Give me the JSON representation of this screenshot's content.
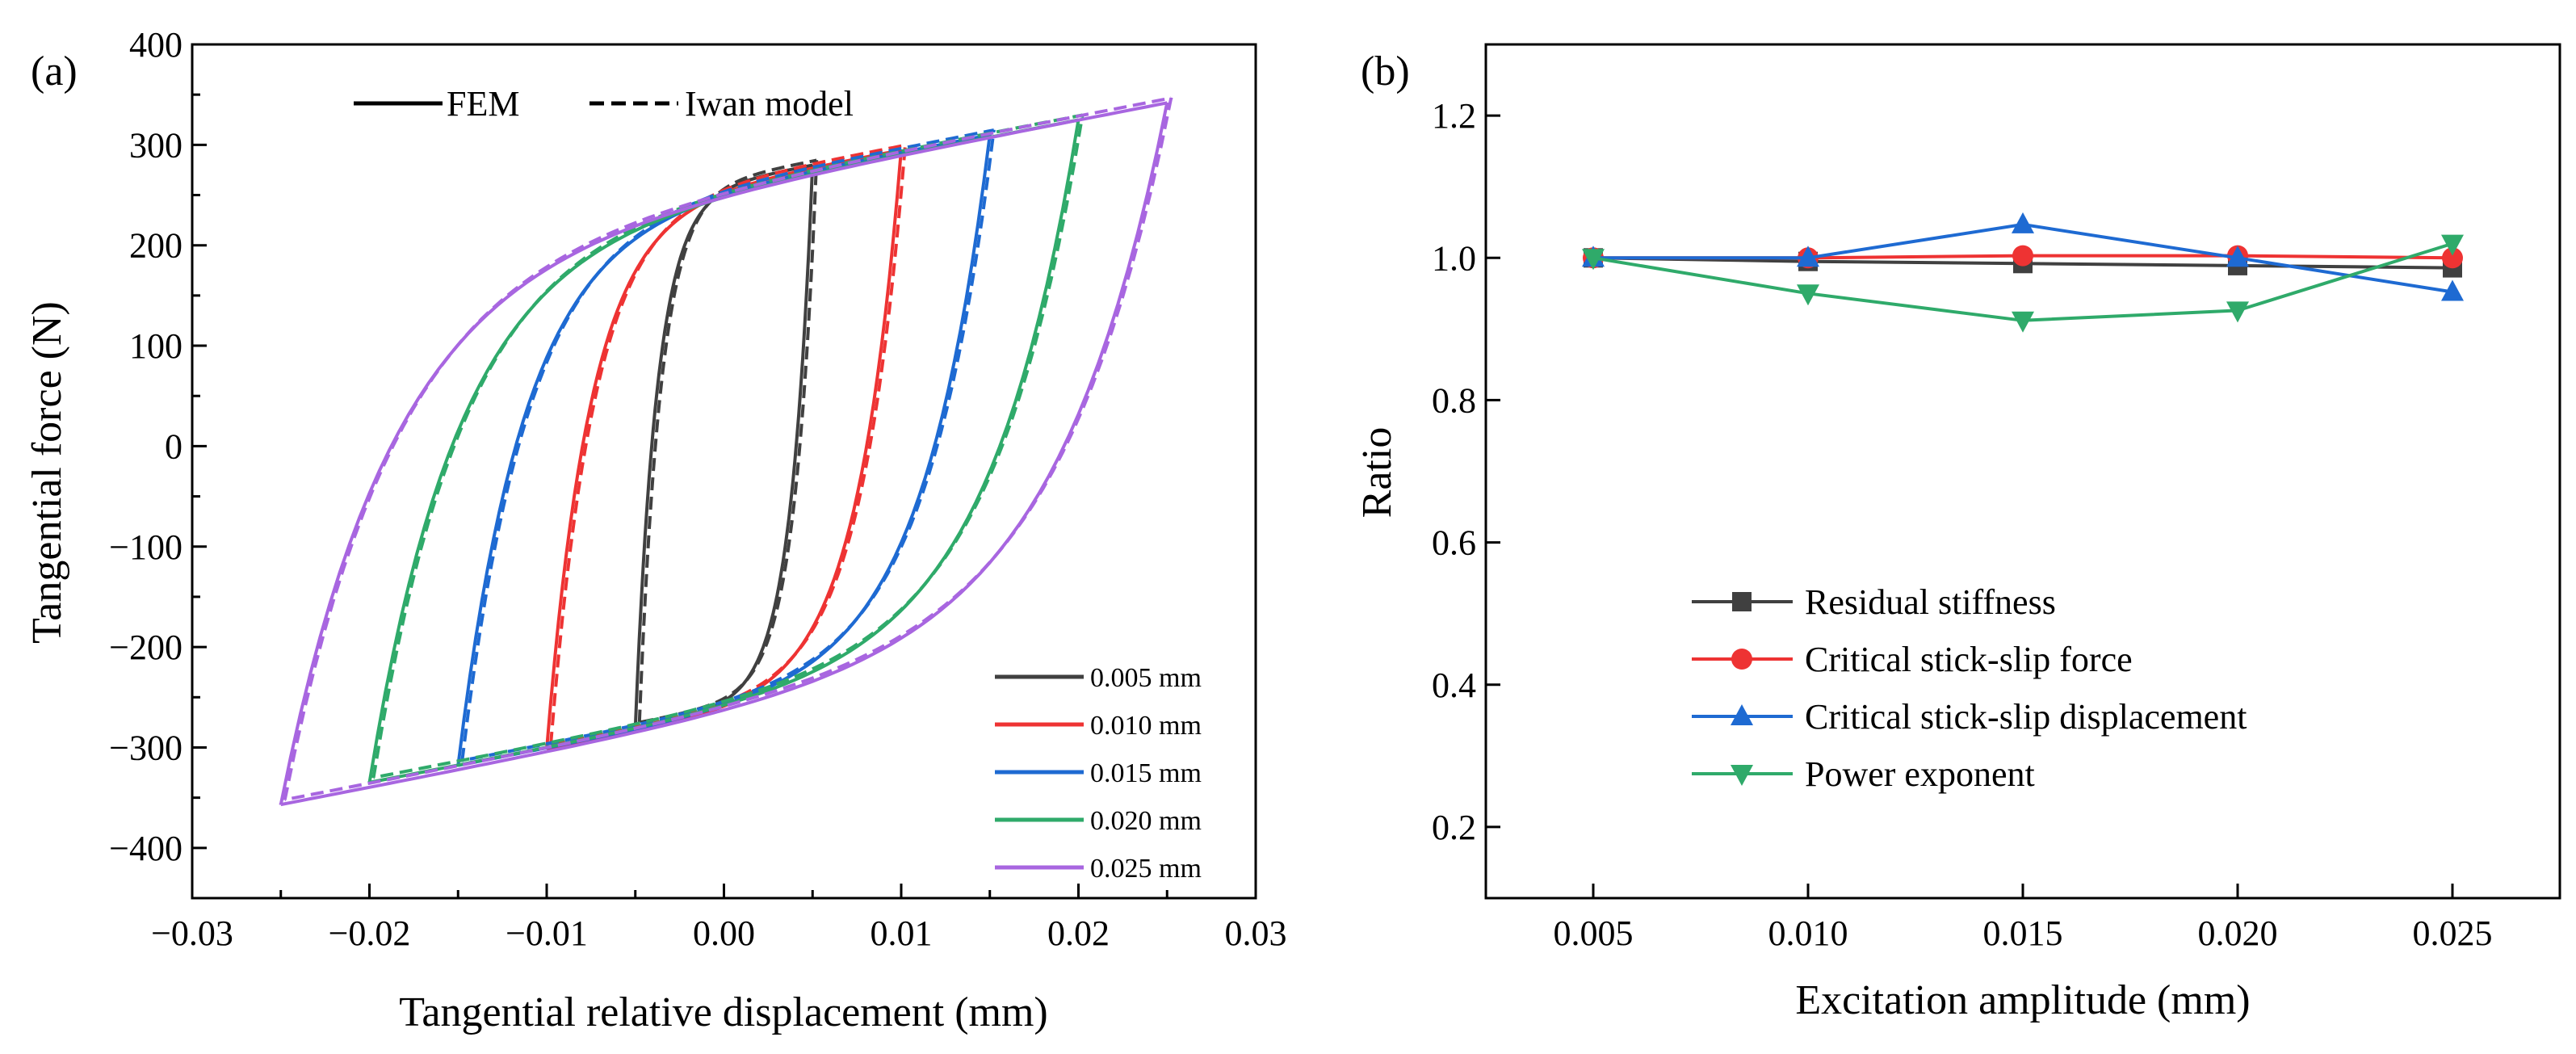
{
  "chart_data": [
    {
      "type": "line",
      "panel_label": "(a)",
      "xlabel": "Tangential relative displacement (mm)",
      "ylabel": "Tangential force (N)",
      "xlim": [
        -0.03,
        0.03
      ],
      "ylim": [
        -450,
        400
      ],
      "xticks": [
        -0.03,
        -0.02,
        -0.01,
        0.0,
        0.01,
        0.02,
        0.03
      ],
      "xtick_labels": [
        "−0.03",
        "−0.02",
        "−0.01",
        "0.00",
        "0.01",
        "0.02",
        "0.03"
      ],
      "yticks": [
        -400,
        -300,
        -200,
        -100,
        0,
        100,
        200,
        300,
        400
      ],
      "ytick_labels": [
        "−400",
        "−300",
        "−200",
        "−100",
        "0",
        "100",
        "200",
        "300",
        "400"
      ],
      "style_legend": [
        {
          "label": "FEM",
          "dash": "solid"
        },
        {
          "label": "Iwan model",
          "dash": "dashed"
        }
      ],
      "series": [
        {
          "name": "0.005 mm",
          "color": "#404040",
          "amplitude": 0.005,
          "peak_force": 280,
          "bottom_force": -280
        },
        {
          "name": "0.010 mm",
          "color": "#ee3333",
          "amplitude": 0.01,
          "peak_force": 295,
          "bottom_force": -302
        },
        {
          "name": "0.015 mm",
          "color": "#1e6ad2",
          "amplitude": 0.015,
          "peak_force": 310,
          "bottom_force": -318
        },
        {
          "name": "0.020 mm",
          "color": "#2faa6a",
          "amplitude": 0.02,
          "peak_force": 325,
          "bottom_force": -335
        },
        {
          "name": "0.025 mm",
          "color": "#a866e0",
          "amplitude": 0.025,
          "peak_force": 342,
          "bottom_force": -357
        }
      ]
    },
    {
      "type": "line",
      "panel_label": "(b)",
      "xlabel": "Excitation amplitude (mm)",
      "ylabel": "Ratio",
      "xlim": [
        0.0025,
        0.0275
      ],
      "ylim": [
        0.1,
        1.3
      ],
      "categories": [
        0.005,
        0.01,
        0.015,
        0.02,
        0.025
      ],
      "xtick_labels": [
        "0.005",
        "0.010",
        "0.015",
        "0.020",
        "0.025"
      ],
      "yticks": [
        0.2,
        0.4,
        0.6,
        0.8,
        1.0,
        1.2
      ],
      "ytick_labels": [
        "0.2",
        "0.4",
        "0.6",
        "0.8",
        "1.0",
        "1.2"
      ],
      "series": [
        {
          "name": "Residual stiffness",
          "color": "#404040",
          "marker": "square",
          "values": [
            1.0,
            0.995,
            0.992,
            0.989,
            0.986
          ]
        },
        {
          "name": "Critical stick-slip force",
          "color": "#ee3333",
          "marker": "circle",
          "values": [
            1.0,
            1.0,
            1.003,
            1.003,
            1.0
          ]
        },
        {
          "name": "Critical stick-slip displacement",
          "color": "#1e6ad2",
          "marker": "triangle-up",
          "values": [
            1.0,
            1.0,
            1.047,
            1.0,
            0.952
          ]
        },
        {
          "name": "Power exponent",
          "color": "#2faa6a",
          "marker": "triangle-down",
          "values": [
            1.0,
            0.95,
            0.912,
            0.926,
            1.02
          ]
        }
      ]
    }
  ]
}
